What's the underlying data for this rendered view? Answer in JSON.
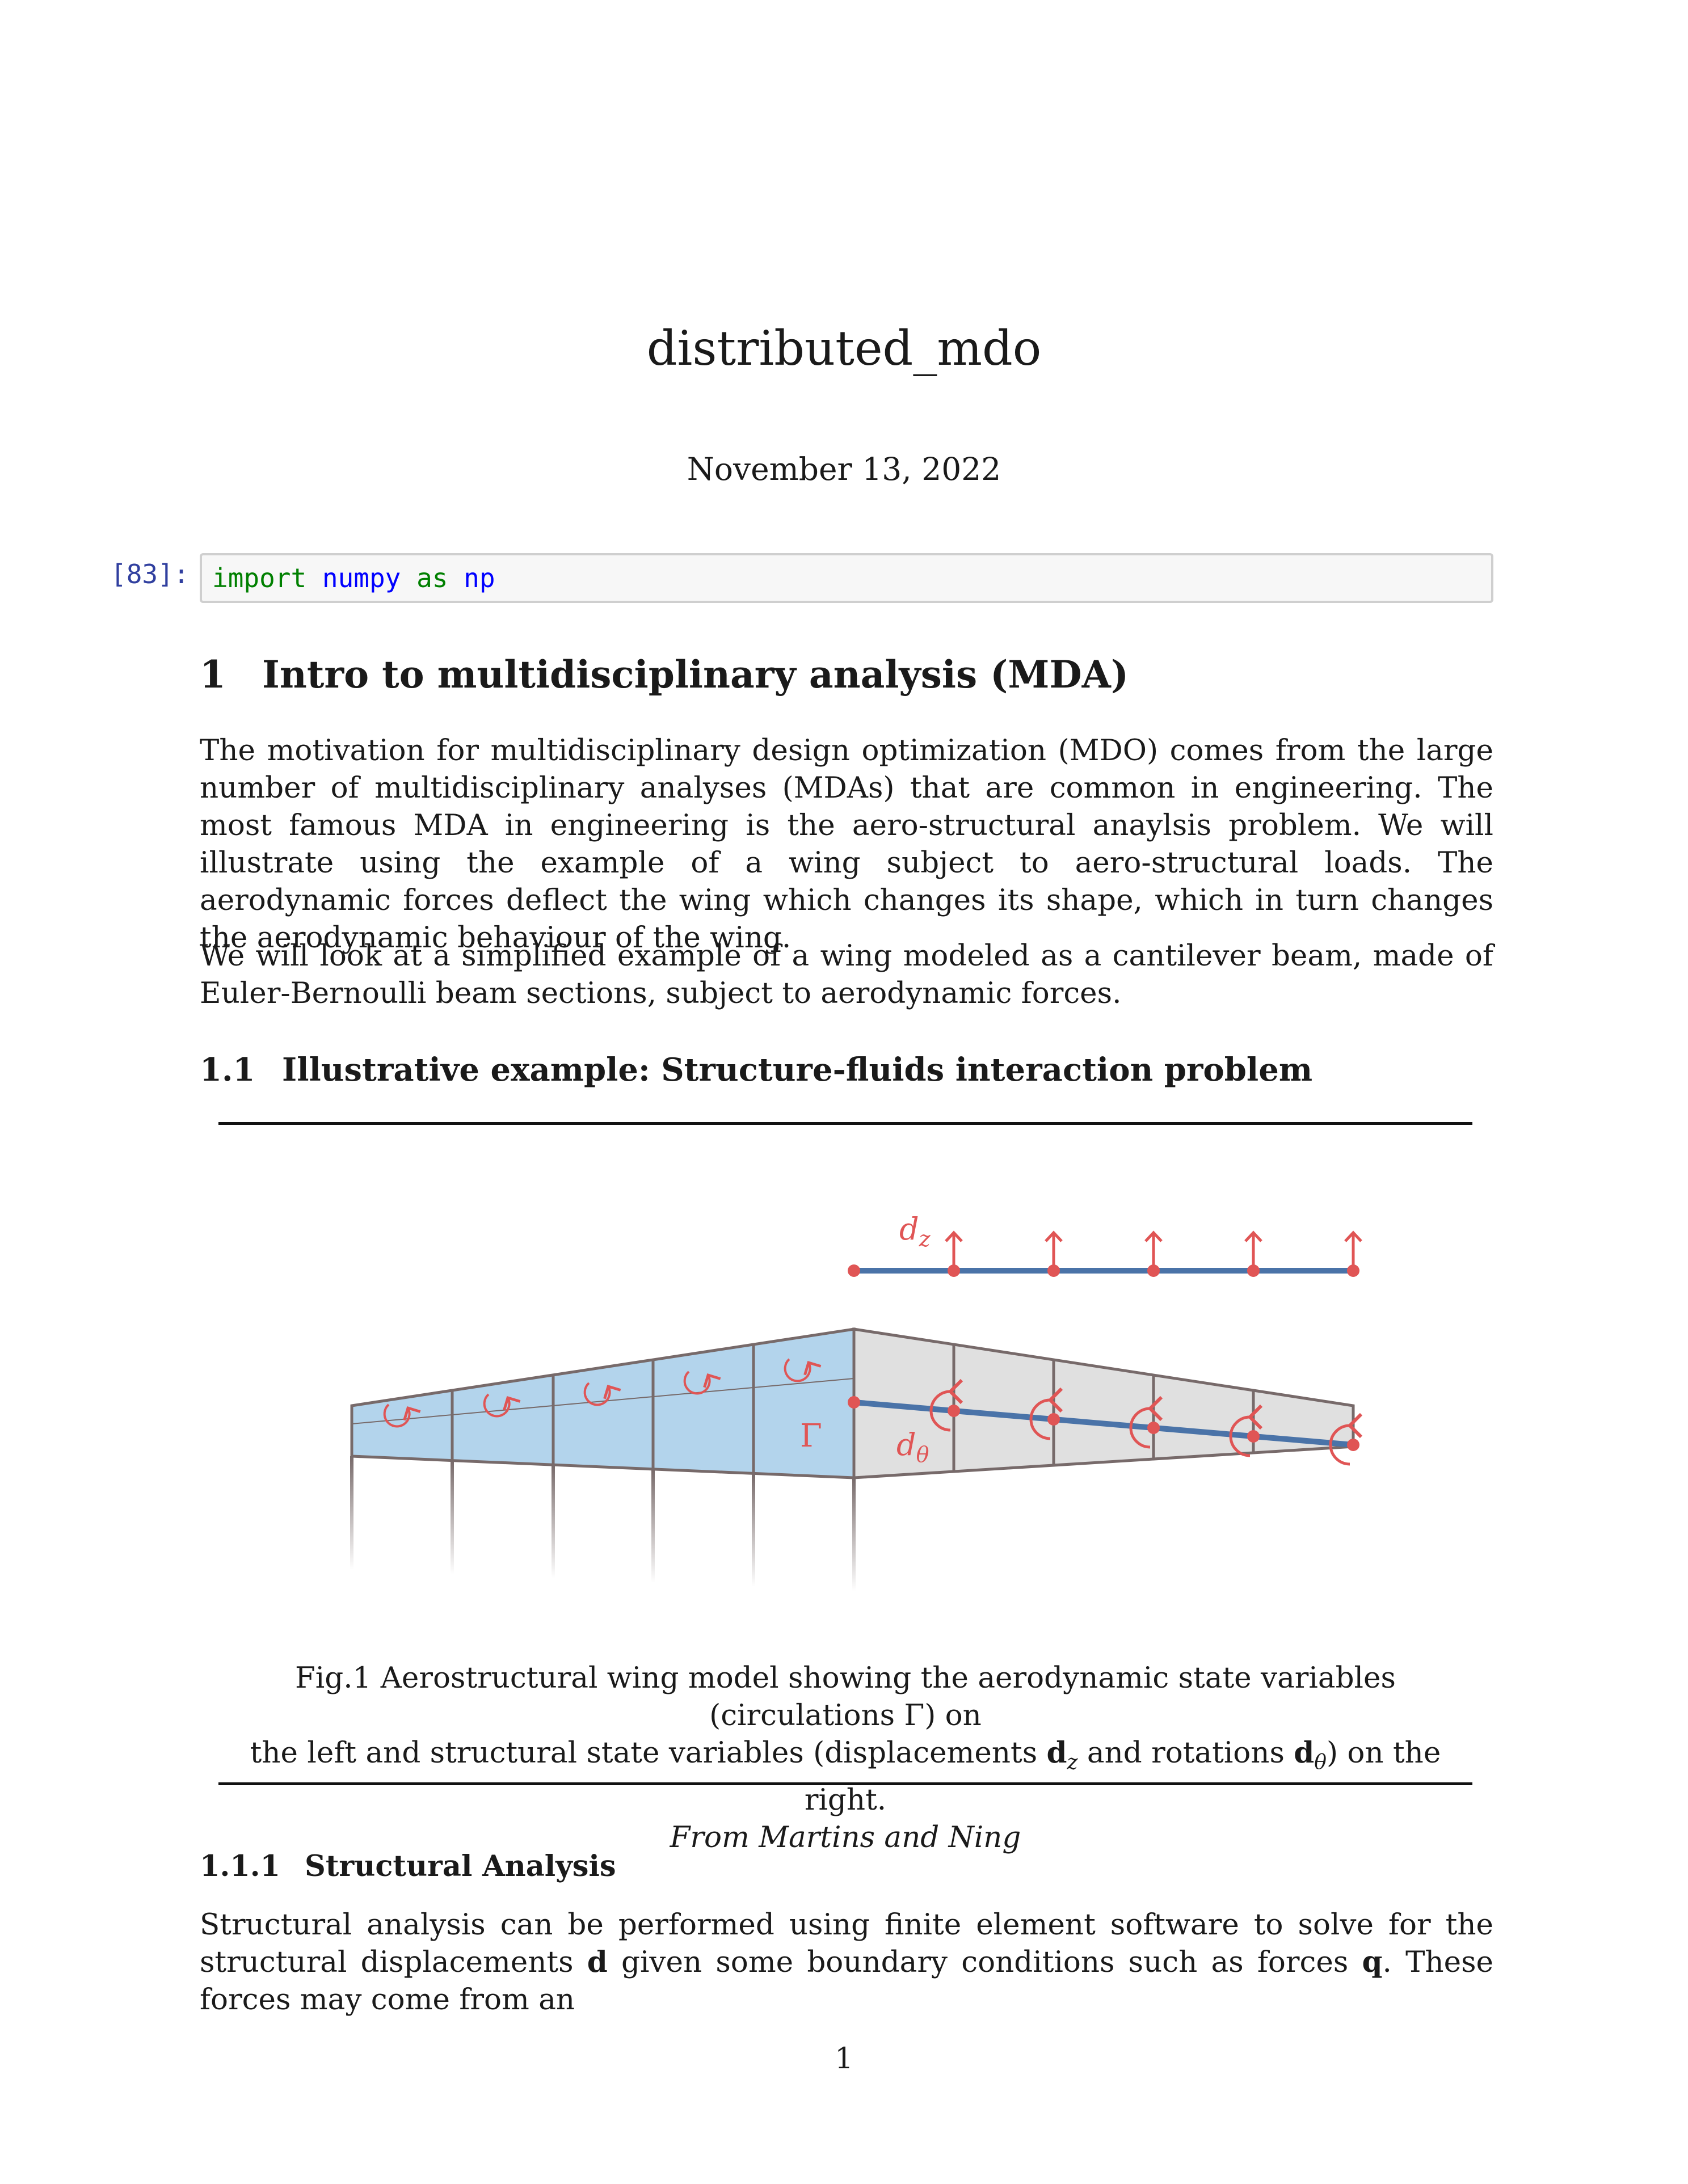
{
  "document": {
    "title": "distributed_mdo",
    "date": "November 13, 2022",
    "page_number": "1"
  },
  "code_cell": {
    "prompt": "[83]:",
    "tokens": {
      "kw1": "import",
      "module": "numpy",
      "kw2": "as",
      "alias": "np"
    }
  },
  "section1": {
    "number": "1",
    "title": "Intro to multidisciplinary analysis (MDA)",
    "paragraphs": [
      "The motivation for multidisciplinary design optimization (MDO) comes from the large number of multidisciplinary analyses (MDAs) that are common in engineering. The most famous MDA in engineering is the aero-structural anaylsis problem. We will illustrate using the example of a wing subject to aero-structural loads. The aerodynamic forces deflect the wing which changes its shape, which in turn changes the aerodynamic behaviour of the wing.",
      "We will look at a simplified example of a wing modeled as a cantilever beam, made of Euler-Bernoulli beam sections, subject to aerodynamic forces."
    ]
  },
  "section1_1": {
    "number": "1.1",
    "title": "Illustrative example: Structure-fluids interaction problem"
  },
  "figure": {
    "labels": {
      "dz": "d",
      "dz_sub": "z",
      "dtheta": "d",
      "dtheta_sub": "θ",
      "gamma": "Γ"
    },
    "colors": {
      "red": "#e05555",
      "beam_blue": "#4a73a8",
      "aero_fill": "#b3d4ec",
      "struct_fill": "#e0e0e0",
      "outline": "#776a6a"
    },
    "caption": {
      "line1": "Fig.1 Aerostructural wing model showing the aerodynamic state variables (circulations Γ) on",
      "line2_a": "the left and structural state variables (displacements ",
      "line2_dz": "d",
      "line2_dz_sub": "z",
      "line2_b": " and rotations ",
      "line2_dtheta": "d",
      "line2_dtheta_sub": "θ",
      "line2_c": ") on the right.",
      "source": "From Martins and Ning"
    }
  },
  "section1_1_1": {
    "number": "1.1.1",
    "title": "Structural Analysis",
    "paragraph": {
      "a": "Structural analysis can be performed using finite element software to solve for the structural displacements ",
      "d": "d",
      "b": " given some boundary conditions such as forces ",
      "q": "q",
      "c": ". These forces may come from an"
    }
  }
}
